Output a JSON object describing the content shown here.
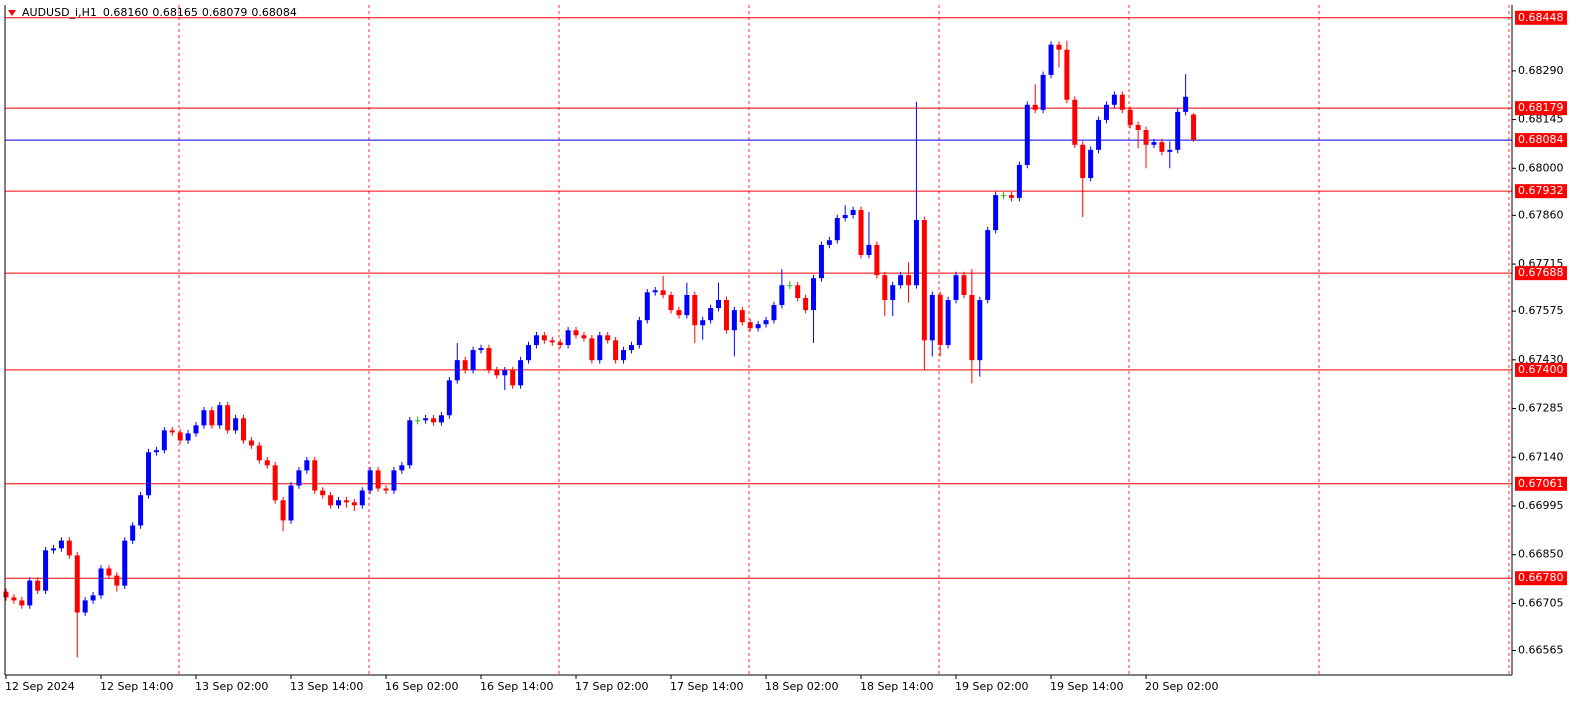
{
  "chart_data": {
    "type": "candlestick",
    "header": {
      "symbol": "AUDUSD_i,H1",
      "ohlc": [
        "0.68160",
        "0.68165",
        "0.68079",
        "0.68084"
      ]
    },
    "up_color": "#0000ff",
    "down_color": "#ff0000",
    "doji_color": "#22b522",
    "level_color": "#ff0000",
    "bid_color": "#0000ff",
    "ylim": [
      0.66492,
      0.68486
    ],
    "yticks": [
      {
        "value": 0.6829,
        "label": "0.68290"
      },
      0.68145,
      {
        "value": 0.68,
        "label": "0.68000"
      },
      {
        "value": 0.6786,
        "label": "0.67860"
      },
      0.67715,
      0.67575,
      {
        "value": 0.6743,
        "label": "0.67430"
      },
      0.67285,
      {
        "value": 0.6714,
        "label": "0.67140"
      },
      0.66995,
      {
        "value": 0.6685,
        "label": "0.66850"
      },
      0.66705,
      0.66565
    ],
    "levels": [
      0.68448,
      0.68179,
      0.67932,
      0.67688,
      {
        "value": 0.674,
        "label": "0.67400"
      },
      0.67061,
      {
        "value": 0.6678,
        "label": "0.66780"
      }
    ],
    "bid": 0.68084,
    "categories": [
      "12 Sep 2024",
      null,
      null,
      null,
      null,
      null,
      null,
      null,
      null,
      null,
      null,
      null,
      "12 Sep 14:00",
      null,
      null,
      null,
      null,
      null,
      null,
      null,
      null,
      null,
      null,
      null,
      "13 Sep 02:00",
      null,
      null,
      null,
      null,
      null,
      null,
      null,
      null,
      null,
      null,
      null,
      "13 Sep 14:00",
      null,
      null,
      null,
      null,
      null,
      null,
      null,
      null,
      null,
      null,
      null,
      "16 Sep 02:00",
      null,
      null,
      null,
      null,
      null,
      null,
      null,
      null,
      null,
      null,
      null,
      "16 Sep 14:00",
      null,
      null,
      null,
      null,
      null,
      null,
      null,
      null,
      null,
      null,
      null,
      "17 Sep 02:00",
      null,
      null,
      null,
      null,
      null,
      null,
      null,
      null,
      null,
      null,
      null,
      "17 Sep 14:00",
      null,
      null,
      null,
      null,
      null,
      null,
      null,
      null,
      null,
      null,
      null,
      "18 Sep 02:00",
      null,
      null,
      null,
      null,
      null,
      null,
      null,
      null,
      null,
      null,
      null,
      "18 Sep 14:00",
      null,
      null,
      null,
      null,
      null,
      null,
      null,
      null,
      null,
      null,
      null,
      "19 Sep 02:00",
      null,
      null,
      null,
      null,
      null,
      null,
      null,
      null,
      null,
      null,
      null,
      "19 Sep 14:00",
      null,
      null,
      null,
      null,
      null,
      null,
      null,
      null,
      null,
      null,
      null,
      "20 Sep 02:00",
      null,
      null,
      null,
      null,
      null,
      null
    ],
    "open": [
      0.6674,
      0.66723,
      0.66714,
      0.66699,
      0.66773,
      0.66743,
      0.66863,
      0.66869,
      0.66892,
      0.66848,
      0.66678,
      0.66714,
      0.66729,
      0.66809,
      0.66788,
      0.66758,
      0.66892,
      0.66937,
      0.67027,
      0.67155,
      0.67161,
      0.6722,
      0.67214,
      0.6719,
      0.67211,
      0.67235,
      0.6728,
      0.67235,
      0.67295,
      0.6722,
      0.67256,
      0.6719,
      0.67175,
      0.67131,
      0.67116,
      0.67012,
      0.66952,
      0.67056,
      0.67101,
      0.67131,
      0.67041,
      0.67027,
      0.66997,
      0.67012,
      0.67006,
      0.66997,
      0.67041,
      0.67101,
      0.67047,
      0.67041,
      0.67101,
      0.67116,
      0.6725,
      0.6725,
      0.67256,
      0.67244,
      0.67265,
      0.67369,
      0.67429,
      0.67399,
      0.67459,
      0.67465,
      0.67399,
      0.67384,
      0.67399,
      0.67354,
      0.67429,
      0.67474,
      0.67503,
      0.67488,
      0.67482,
      0.67474,
      0.67518,
      0.67503,
      0.67494,
      0.67429,
      0.67503,
      0.67488,
      0.67429,
      0.67459,
      0.67474,
      0.67548,
      0.67631,
      0.67637,
      0.67623,
      0.67578,
      0.67563,
      0.67623,
      0.67533,
      0.67548,
      0.67584,
      0.67608,
      0.67518,
      0.67578,
      0.67542,
      0.67524,
      0.67536,
      0.67548,
      0.67593,
      0.67652,
      0.67652,
      0.67614,
      0.67578,
      0.67673,
      0.67772,
      0.67786,
      0.67852,
      0.67861,
      0.67876,
      0.67742,
      0.67772,
      0.67682,
      0.67608,
      0.67652,
      0.67682,
      0.67652,
      0.67846,
      0.67488,
      0.67623,
      0.67474,
      0.67608,
      0.67682,
      0.67623,
      0.67429,
      0.67608,
      0.67816,
      0.6792,
      0.6792,
      0.67912,
      0.6801,
      0.68189,
      0.68174,
      0.68278,
      0.68368,
      0.68353,
      0.68204,
      0.6807,
      0.67971,
      0.68055,
      0.68144,
      0.68189,
      0.68219,
      0.68174,
      0.68129,
      0.68114,
      0.6807,
      0.68078,
      0.68049,
      0.68055,
      0.68168,
      0.6816
    ],
    "high": [
      0.6675,
      0.66733,
      0.66724,
      0.66783,
      0.66783,
      0.66873,
      0.66879,
      0.66902,
      0.66902,
      0.66858,
      0.66724,
      0.66739,
      0.66819,
      0.66819,
      0.66798,
      0.66902,
      0.66947,
      0.67037,
      0.67165,
      0.67171,
      0.6723,
      0.6723,
      0.67224,
      0.67221,
      0.67245,
      0.6729,
      0.6729,
      0.67305,
      0.67305,
      0.67266,
      0.67266,
      0.672,
      0.67185,
      0.67141,
      0.67126,
      0.67022,
      0.67066,
      0.67111,
      0.67141,
      0.67141,
      0.67051,
      0.67037,
      0.67022,
      0.67022,
      0.67016,
      0.67051,
      0.67111,
      0.67111,
      0.67057,
      0.67111,
      0.67126,
      0.6726,
      0.67262,
      0.67266,
      0.67266,
      0.67275,
      0.67379,
      0.6748,
      0.67439,
      0.67469,
      0.67475,
      0.67475,
      0.67409,
      0.67409,
      0.67409,
      0.67439,
      0.67484,
      0.67513,
      0.67513,
      0.67498,
      0.67492,
      0.67528,
      0.67528,
      0.67513,
      0.67504,
      0.67513,
      0.67513,
      0.67498,
      0.67469,
      0.67484,
      0.67558,
      0.67641,
      0.67647,
      0.6768,
      0.67633,
      0.67588,
      0.6766,
      0.67633,
      0.67558,
      0.67594,
      0.6766,
      0.67618,
      0.67588,
      0.67588,
      0.67552,
      0.67546,
      0.67558,
      0.67603,
      0.677,
      0.67664,
      0.67662,
      0.67624,
      0.67683,
      0.67782,
      0.67796,
      0.67862,
      0.6789,
      0.67886,
      0.67886,
      0.6787,
      0.67782,
      0.67692,
      0.67662,
      0.67692,
      0.6772,
      0.68198,
      0.67856,
      0.67633,
      0.67633,
      0.67618,
      0.67692,
      0.67692,
      0.677,
      0.67618,
      0.67826,
      0.6793,
      0.67932,
      0.6793,
      0.6802,
      0.68199,
      0.6825,
      0.68288,
      0.68378,
      0.68378,
      0.6838,
      0.68214,
      0.6808,
      0.68065,
      0.68154,
      0.68199,
      0.68229,
      0.68229,
      0.68184,
      0.68139,
      0.68124,
      0.68088,
      0.68088,
      0.6808,
      0.68178,
      0.6828,
      0.68165
    ],
    "low": [
      0.66713,
      0.66704,
      0.66689,
      0.66689,
      0.66733,
      0.66733,
      0.66853,
      0.66859,
      0.66838,
      0.66544,
      0.66668,
      0.66704,
      0.66719,
      0.66778,
      0.6674,
      0.66748,
      0.66882,
      0.66927,
      0.67017,
      0.67145,
      0.67151,
      0.67204,
      0.6718,
      0.6718,
      0.67201,
      0.67225,
      0.67225,
      0.67225,
      0.6721,
      0.6721,
      0.6718,
      0.67165,
      0.67121,
      0.67106,
      0.67002,
      0.6692,
      0.66942,
      0.67046,
      0.67091,
      0.67031,
      0.67017,
      0.66987,
      0.66987,
      0.6699,
      0.6698,
      0.66987,
      0.67031,
      0.67037,
      0.67031,
      0.67031,
      0.67091,
      0.67106,
      0.67238,
      0.6724,
      0.67234,
      0.67234,
      0.67255,
      0.67359,
      0.67389,
      0.67389,
      0.67449,
      0.67389,
      0.67374,
      0.6734,
      0.67344,
      0.67344,
      0.67419,
      0.67464,
      0.67478,
      0.67472,
      0.67464,
      0.67464,
      0.67493,
      0.67484,
      0.67419,
      0.67419,
      0.67478,
      0.67419,
      0.67419,
      0.67449,
      0.67464,
      0.67538,
      0.67621,
      0.67613,
      0.67568,
      0.67553,
      0.67553,
      0.6748,
      0.6749,
      0.67538,
      0.67574,
      0.67508,
      0.6744,
      0.67532,
      0.67514,
      0.67514,
      0.67526,
      0.67538,
      0.67583,
      0.6764,
      0.67604,
      0.67568,
      0.6748,
      0.67663,
      0.67762,
      0.67776,
      0.67842,
      0.67851,
      0.67732,
      0.67732,
      0.67672,
      0.6756,
      0.6756,
      0.67642,
      0.676,
      0.67642,
      0.674,
      0.6744,
      0.6744,
      0.67464,
      0.67598,
      0.67613,
      0.6736,
      0.6738,
      0.67598,
      0.67806,
      0.67908,
      0.67902,
      0.67902,
      0.68,
      0.68164,
      0.68164,
      0.68268,
      0.683,
      0.68194,
      0.6806,
      0.67855,
      0.67961,
      0.68045,
      0.68134,
      0.68179,
      0.68164,
      0.68119,
      0.6806,
      0.68,
      0.6806,
      0.68039,
      0.68,
      0.68045,
      0.68158,
      0.68079
    ],
    "close": [
      0.66723,
      0.66714,
      0.66699,
      0.66773,
      0.66743,
      0.66863,
      0.66869,
      0.66892,
      0.66848,
      0.66678,
      0.66714,
      0.66729,
      0.66809,
      0.66788,
      0.66758,
      0.66892,
      0.66937,
      0.67027,
      0.67155,
      0.67161,
      0.6722,
      0.67214,
      0.6719,
      0.67211,
      0.67235,
      0.6728,
      0.67235,
      0.67295,
      0.6722,
      0.67256,
      0.6719,
      0.67175,
      0.67131,
      0.67116,
      0.67012,
      0.66952,
      0.67056,
      0.67101,
      0.67131,
      0.67041,
      0.67027,
      0.66997,
      0.67012,
      0.67006,
      0.66997,
      0.67041,
      0.67101,
      0.67047,
      0.67041,
      0.67101,
      0.67116,
      0.6725,
      0.6725,
      0.67256,
      0.67244,
      0.67265,
      0.67369,
      0.67429,
      0.67399,
      0.67459,
      0.67465,
      0.67399,
      0.67384,
      0.67399,
      0.67354,
      0.67429,
      0.67474,
      0.67503,
      0.67488,
      0.67482,
      0.67474,
      0.67518,
      0.67503,
      0.67494,
      0.67429,
      0.67503,
      0.67488,
      0.67429,
      0.67459,
      0.67474,
      0.67548,
      0.67631,
      0.67637,
      0.67623,
      0.67578,
      0.67563,
      0.67623,
      0.67533,
      0.67548,
      0.67584,
      0.67608,
      0.67518,
      0.67578,
      0.67542,
      0.67524,
      0.67536,
      0.67548,
      0.67593,
      0.67652,
      0.67652,
      0.67614,
      0.67578,
      0.67673,
      0.67772,
      0.67786,
      0.67852,
      0.67861,
      0.67876,
      0.67742,
      0.67772,
      0.67682,
      0.67608,
      0.67652,
      0.67682,
      0.67652,
      0.67846,
      0.67488,
      0.67623,
      0.67474,
      0.67608,
      0.67682,
      0.67623,
      0.67429,
      0.67608,
      0.67816,
      0.6792,
      0.6792,
      0.67912,
      0.6801,
      0.68189,
      0.68174,
      0.68278,
      0.68368,
      0.68353,
      0.68204,
      0.6807,
      0.67971,
      0.68055,
      0.68144,
      0.68189,
      0.68219,
      0.68174,
      0.68129,
      0.68114,
      0.6807,
      0.68078,
      0.68049,
      0.68055,
      0.68168,
      0.68213,
      0.68084
    ]
  }
}
